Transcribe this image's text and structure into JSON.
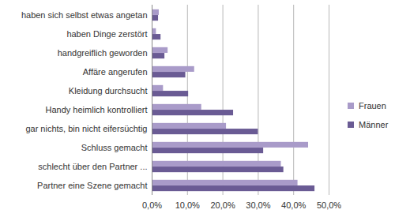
{
  "chart_data": {
    "type": "bar",
    "orientation": "horizontal",
    "categories": [
      "haben sich selbst etwas angetan",
      "haben Dinge zerstört",
      "handgreiflich geworden",
      "Affäre angerufen",
      "Kleidung durchsucht",
      "Handy heimlich kontrolliert",
      "gar nichts, bin nicht eifersüchtig",
      "Schluss gemacht",
      "schlecht über den Partner ...",
      "Partner eine Szene gemacht"
    ],
    "series": [
      {
        "name": "Frauen",
        "color": "#a99bc9",
        "values": [
          2.0,
          1.2,
          4.5,
          12.0,
          3.2,
          14.0,
          21.0,
          44.2,
          36.5,
          41.2
        ]
      },
      {
        "name": "Männer",
        "color": "#6a5b94",
        "values": [
          1.8,
          2.5,
          3.6,
          9.5,
          10.3,
          23.0,
          30.0,
          31.5,
          37.2,
          46.0
        ]
      }
    ],
    "xlim": [
      0,
      50
    ],
    "xticks": [
      {
        "value": 0,
        "label": "0,0%"
      },
      {
        "value": 10,
        "label": "10,0%"
      },
      {
        "value": 20,
        "label": "20,0%"
      },
      {
        "value": 30,
        "label": "30,0%"
      },
      {
        "value": 40,
        "label": "40,0%"
      },
      {
        "value": 50,
        "label": "50,0%"
      }
    ],
    "grid": true,
    "legend": "right"
  }
}
